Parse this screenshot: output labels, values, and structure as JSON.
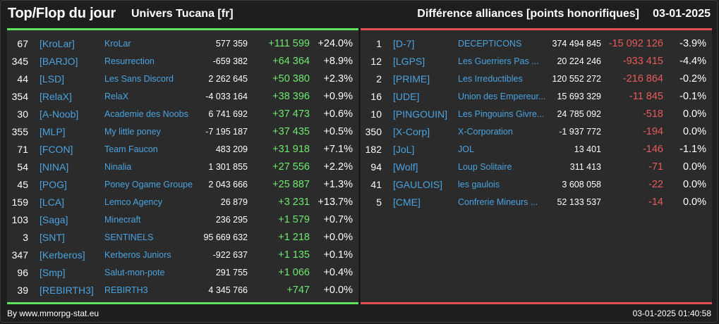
{
  "header": {
    "title": "Top/Flop du jour",
    "server": "Univers Tucana [fr]",
    "metric": "Différence alliances [points honorifiques]",
    "date": "03-01-2025"
  },
  "colors": {
    "positive": "#6ee86e",
    "negative": "#e85a5a",
    "link": "#4aa3df",
    "top_bar": "#5fe35f",
    "flop_bar": "#e05050"
  },
  "top": [
    {
      "rank": "67",
      "tag": "[KroLar]",
      "name": "KroLar",
      "points": "577 359",
      "diff": "+111 599",
      "pct": "+24.0%"
    },
    {
      "rank": "345",
      "tag": "[BARJO]",
      "name": "Resurrection",
      "points": "-659 382",
      "diff": "+64 364",
      "pct": "+8.9%"
    },
    {
      "rank": "44",
      "tag": "[LSD]",
      "name": "Les Sans Discord",
      "points": "2 262 645",
      "diff": "+50 380",
      "pct": "+2.3%"
    },
    {
      "rank": "354",
      "tag": "[RelaX]",
      "name": "RelaX",
      "points": "-4 033 164",
      "diff": "+38 396",
      "pct": "+0.9%"
    },
    {
      "rank": "30",
      "tag": "[A-Noob]",
      "name": "Academie des Noobs",
      "points": "6 741 692",
      "diff": "+37 473",
      "pct": "+0.6%"
    },
    {
      "rank": "355",
      "tag": "[MLP]",
      "name": "My little poney",
      "points": "-7 195 187",
      "diff": "+37 435",
      "pct": "+0.5%"
    },
    {
      "rank": "71",
      "tag": "[FCON]",
      "name": "Team Faucon",
      "points": "483 209",
      "diff": "+31 918",
      "pct": "+7.1%"
    },
    {
      "rank": "54",
      "tag": "[NINA]",
      "name": "Ninalia",
      "points": "1 301 855",
      "diff": "+27 556",
      "pct": "+2.2%"
    },
    {
      "rank": "45",
      "tag": "[POG]",
      "name": "Poney Ogame Groupe",
      "points": "2 043 666",
      "diff": "+25 887",
      "pct": "+1.3%"
    },
    {
      "rank": "159",
      "tag": "[LCA]",
      "name": "Lemco Agency",
      "points": "26 879",
      "diff": "+3 231",
      "pct": "+13.7%"
    },
    {
      "rank": "103",
      "tag": "[Saga]",
      "name": "Minecraft",
      "points": "236 295",
      "diff": "+1 579",
      "pct": "+0.7%"
    },
    {
      "rank": "3",
      "tag": "[SNT]",
      "name": "SENTINELS",
      "points": "95 669 632",
      "diff": "+1 218",
      "pct": "+0.0%"
    },
    {
      "rank": "347",
      "tag": "[Kerberos]",
      "name": "Kerberos Juniors",
      "points": "-922 637",
      "diff": "+1 135",
      "pct": "+0.1%"
    },
    {
      "rank": "96",
      "tag": "[Smp]",
      "name": "Salut-mon-pote",
      "points": "291 755",
      "diff": "+1 066",
      "pct": "+0.4%"
    },
    {
      "rank": "39",
      "tag": "[REBIRTH3]",
      "name": "REBIRTH3",
      "points": "4 345 766",
      "diff": "+747",
      "pct": "+0.0%"
    }
  ],
  "flop": [
    {
      "rank": "1",
      "tag": "[D-7]",
      "name": "DECEPTICONS",
      "points": "374 494 845",
      "diff": "-15 092 126",
      "pct": "-3.9%"
    },
    {
      "rank": "12",
      "tag": "[LGPS]",
      "name": "Les Guerriers Pas ...",
      "points": "20 224 246",
      "diff": "-933 415",
      "pct": "-4.4%"
    },
    {
      "rank": "2",
      "tag": "[PRIME]",
      "name": "Les Irreductibles",
      "points": "120 552 272",
      "diff": "-216 864",
      "pct": "-0.2%"
    },
    {
      "rank": "16",
      "tag": "[UDE]",
      "name": "Union des Empereur...",
      "points": "15 693 329",
      "diff": "-11 845",
      "pct": "-0.1%"
    },
    {
      "rank": "10",
      "tag": "[PINGOUIN]",
      "name": "Les Pingouins Givre...",
      "points": "24 785 092",
      "diff": "-518",
      "pct": "0.0%"
    },
    {
      "rank": "350",
      "tag": "[X-Corp]",
      "name": "X-Corporation",
      "points": "-1 937 772",
      "diff": "-194",
      "pct": "0.0%"
    },
    {
      "rank": "182",
      "tag": "[JoL]",
      "name": "JOL",
      "points": "13 401",
      "diff": "-146",
      "pct": "-1.1%"
    },
    {
      "rank": "94",
      "tag": "[Wolf]",
      "name": "Loup Solitaire",
      "points": "311 413",
      "diff": "-71",
      "pct": "0.0%"
    },
    {
      "rank": "41",
      "tag": "[GAULOIS]",
      "name": "les gaulois",
      "points": "3 608 058",
      "diff": "-22",
      "pct": "0.0%"
    },
    {
      "rank": "5",
      "tag": "[CME]",
      "name": "Confrerie Mineurs ...",
      "points": "52 133 537",
      "diff": "-14",
      "pct": "0.0%"
    }
  ],
  "footer": {
    "source": "By www.mmorpg-stat.eu",
    "timestamp": "03-01-2025 01:40:58"
  }
}
